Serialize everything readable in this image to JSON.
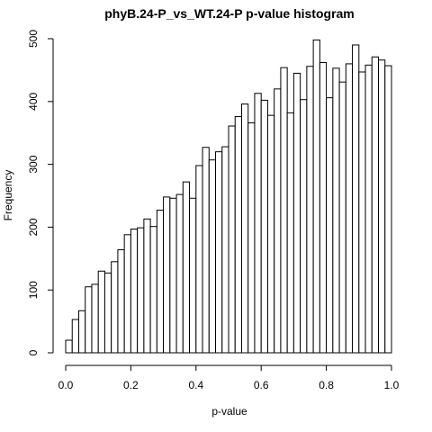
{
  "chart_data": {
    "type": "bar",
    "title": "phyB.24-P_vs_WT.24-P p-value histogram",
    "xlabel": "p-value",
    "ylabel": "Frequency",
    "xlim": [
      0,
      1
    ],
    "ylim": [
      0,
      500
    ],
    "bin_width": 0.02,
    "x_ticks": [
      "0.0",
      "0.2",
      "0.4",
      "0.6",
      "0.8",
      "1.0"
    ],
    "y_ticks": [
      "0",
      "100",
      "200",
      "300",
      "400",
      "500"
    ],
    "values": [
      20,
      53,
      67,
      105,
      109,
      130,
      127,
      145,
      164,
      188,
      197,
      199,
      213,
      201,
      227,
      248,
      246,
      252,
      272,
      246,
      298,
      327,
      307,
      320,
      328,
      361,
      376,
      396,
      366,
      413,
      402,
      378,
      420,
      454,
      382,
      445,
      403,
      456,
      498,
      462,
      406,
      453,
      431,
      460,
      490,
      447,
      458,
      471,
      466,
      457
    ]
  }
}
